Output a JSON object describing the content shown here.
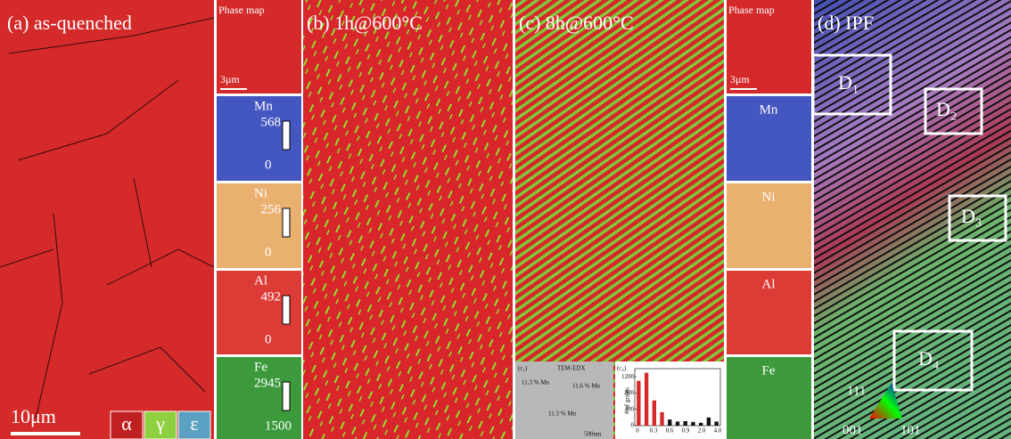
{
  "panel_a": {
    "label": "(a) as-quenched",
    "scale_bar": "10μm",
    "legend": [
      "α",
      "γ",
      "ε"
    ]
  },
  "map_column_1": {
    "title": "Phase map",
    "scale_bar": "3μm",
    "elements": [
      {
        "name": "Mn",
        "max": "568",
        "min": "0"
      },
      {
        "name": "Ni",
        "max": "256",
        "min": "0"
      },
      {
        "name": "Al",
        "max": "492",
        "min": "0"
      },
      {
        "name": "Fe",
        "max": "2945",
        "min": "1500"
      }
    ]
  },
  "panel_b": {
    "label": "(b) 1h@600°C"
  },
  "panel_c": {
    "label": "(c) 8h@600°C",
    "inset_1": {
      "label": "(c₁)",
      "title": "TEM-EDX",
      "notes": [
        "11.3 % Mn",
        "11.6 % Mn",
        "11.3 % Mn"
      ],
      "scale_bar": "500nm"
    },
    "inset_2": {
      "label": "(c₂)",
      "y_label": "# of grains",
      "values": [
        1100,
        1300,
        620,
        330,
        150,
        100,
        110,
        90,
        70,
        200,
        100
      ],
      "colors": [
        "#d42a2a",
        "#d42a2a",
        "#d42a2a",
        "#d42a2a",
        "#111",
        "#111",
        "#111",
        "#111",
        "#111",
        "#111",
        "#111"
      ],
      "ylim": [
        0,
        1400
      ],
      "yticks": [
        0,
        400,
        800,
        1200
      ],
      "xtick_labels": [
        "0",
        "0.3",
        "0.6",
        "0.9",
        "2.0",
        "4.0"
      ]
    }
  },
  "map_column_2": {
    "title": "Phase map",
    "scale_bar": "3μm",
    "elements": [
      "Mn",
      "Ni",
      "Al",
      "Fe"
    ]
  },
  "panel_d": {
    "label": "(d) IPF",
    "boxes": [
      "D₁",
      "D₂",
      "D₃",
      "D₄"
    ],
    "key": [
      "111",
      "001",
      "101"
    ]
  }
}
